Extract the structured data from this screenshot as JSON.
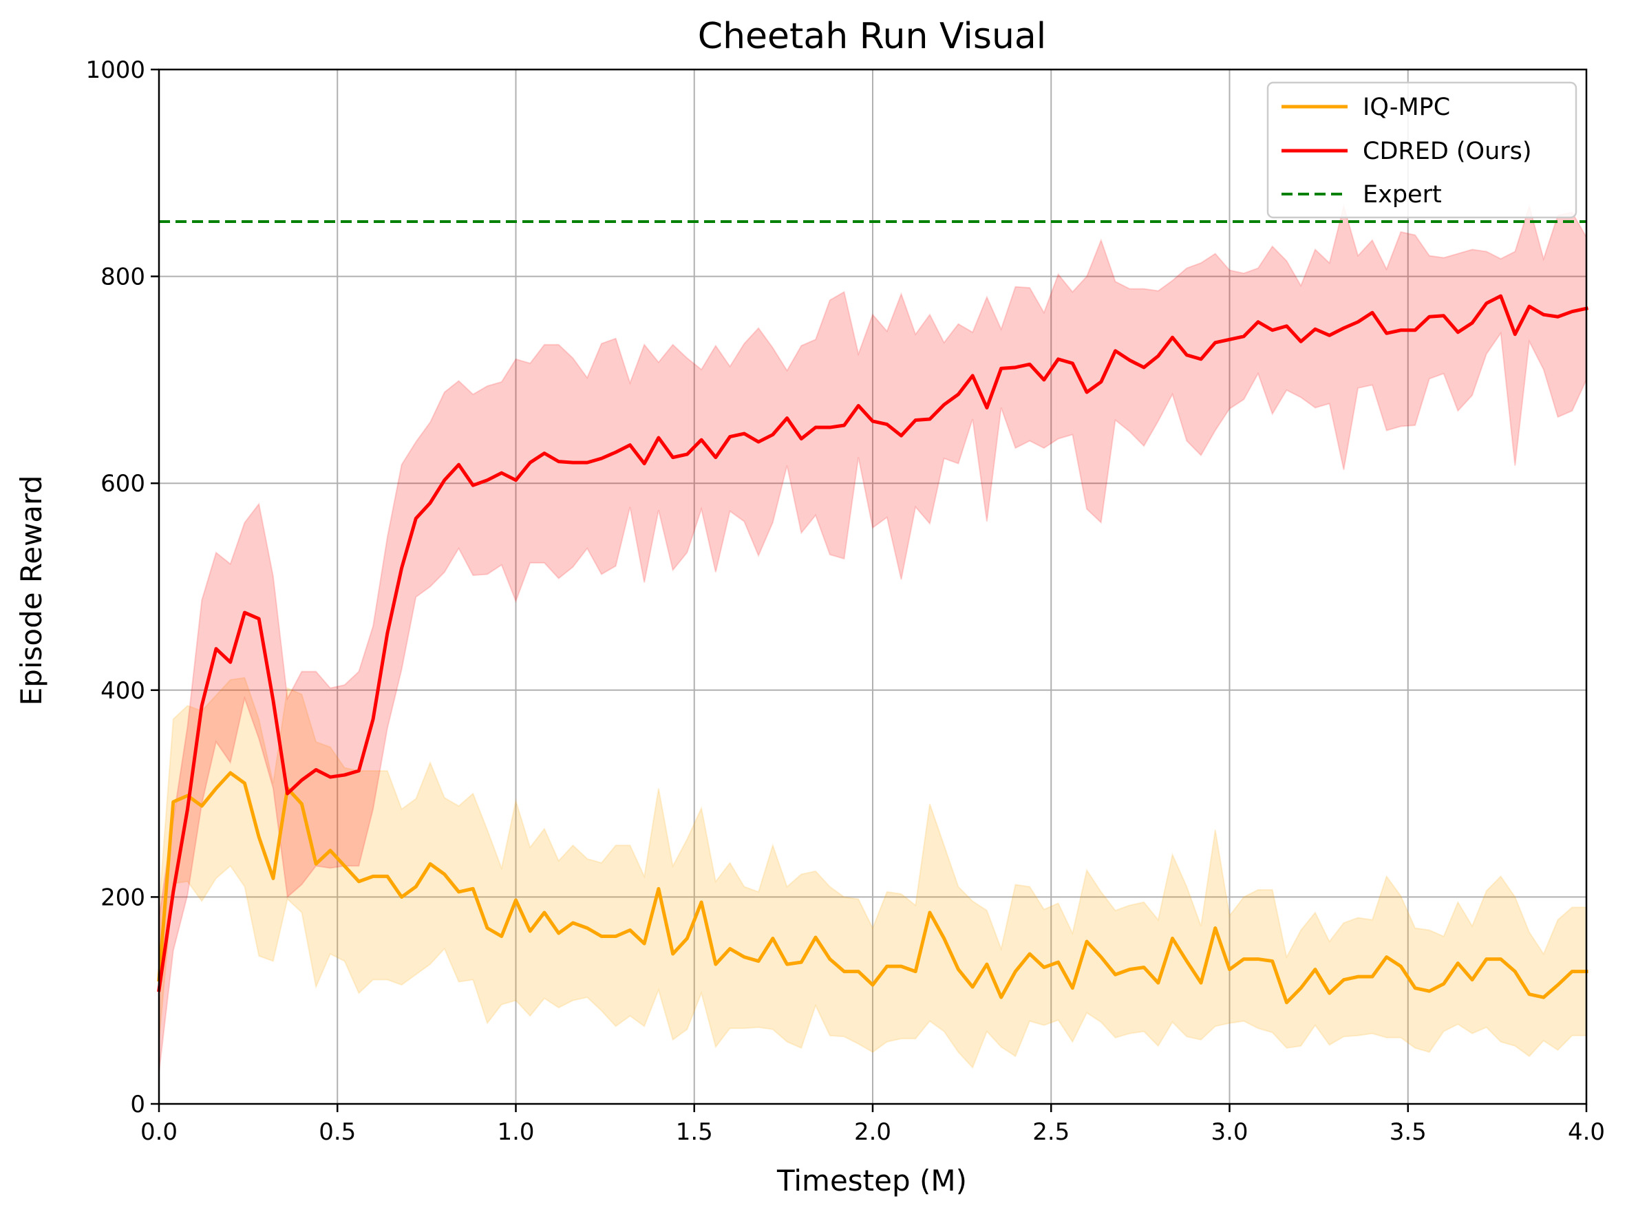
{
  "chart_data": {
    "type": "line",
    "title": "Cheetah Run Visual",
    "xlabel": "Timestep (M)",
    "ylabel": "Episode Reward",
    "xlim": [
      0,
      4.0
    ],
    "ylim": [
      0,
      1000
    ],
    "xticks": [
      0.0,
      0.5,
      1.0,
      1.5,
      2.0,
      2.5,
      3.0,
      3.5,
      4.0
    ],
    "xtick_labels": [
      "0.0",
      "0.5",
      "1.0",
      "1.5",
      "2.0",
      "2.5",
      "3.0",
      "3.5",
      "4.0"
    ],
    "yticks": [
      0,
      200,
      400,
      600,
      800,
      1000
    ],
    "ytick_labels": [
      "0",
      "200",
      "400",
      "600",
      "800",
      "1000"
    ],
    "grid": true,
    "legend_position": "top-right",
    "reference_line": {
      "name": "Expert",
      "value": 853,
      "color": "#008000",
      "style": "dashed"
    },
    "series": [
      {
        "name": "IQ-MPC",
        "color": "#FFA500",
        "x": [
          0.0,
          0.04,
          0.08,
          0.12,
          0.16,
          0.2,
          0.24,
          0.28,
          0.32,
          0.36,
          0.4,
          0.44,
          0.48,
          0.52,
          0.56,
          0.6,
          0.64,
          0.68,
          0.72,
          0.76,
          0.8,
          0.84,
          0.88,
          0.92,
          0.96,
          1.0,
          1.04,
          1.08,
          1.12,
          1.16,
          1.2,
          1.24,
          1.28,
          1.32,
          1.36,
          1.4,
          1.44,
          1.48,
          1.52,
          1.56,
          1.6,
          1.64,
          1.68,
          1.72,
          1.76,
          1.8,
          1.84,
          1.88,
          1.92,
          1.96,
          2.0,
          2.04,
          2.08,
          2.12,
          2.16,
          2.2,
          2.24,
          2.28,
          2.32,
          2.36,
          2.4,
          2.44,
          2.48,
          2.52,
          2.56,
          2.6,
          2.64,
          2.68,
          2.72,
          2.76,
          2.8,
          2.84,
          2.88,
          2.92,
          2.96,
          3.0,
          3.04,
          3.08,
          3.12,
          3.16,
          3.2,
          3.24,
          3.28,
          3.32,
          3.36,
          3.4,
          3.44,
          3.48,
          3.52,
          3.56,
          3.6,
          3.64,
          3.68,
          3.72,
          3.76,
          3.8,
          3.84,
          3.88,
          3.92,
          3.96,
          4.0
        ],
        "mean": [
          120,
          292,
          298,
          288,
          305,
          320,
          310,
          258,
          218,
          305,
          290,
          232,
          245,
          230,
          215,
          220,
          220,
          200,
          210,
          232,
          222,
          205,
          208,
          170,
          162,
          197,
          167,
          185,
          165,
          175,
          170,
          162,
          162,
          168,
          155,
          208,
          145,
          160,
          195,
          135,
          150,
          142,
          138,
          160,
          135,
          137,
          161,
          140,
          128,
          128,
          115,
          133,
          133,
          128,
          185,
          160,
          130,
          113,
          135,
          103,
          128,
          145,
          132,
          137,
          112,
          157,
          142,
          125,
          130,
          132,
          117,
          160,
          138,
          117,
          170,
          130,
          140,
          140,
          138,
          98,
          112,
          130,
          107,
          120,
          123,
          123,
          142,
          133,
          112,
          109,
          116,
          136,
          120,
          140,
          140,
          128,
          106,
          103,
          115,
          128,
          128
        ],
        "upper": [
          190,
          372,
          385,
          380,
          395,
          410,
          412,
          372,
          310,
          402,
          396,
          350,
          345,
          325,
          322,
          322,
          322,
          285,
          295,
          330,
          296,
          288,
          300,
          265,
          228,
          293,
          248,
          266,
          235,
          250,
          237,
          233,
          250,
          250,
          220,
          305,
          230,
          256,
          286,
          215,
          233,
          210,
          205,
          250,
          210,
          222,
          225,
          210,
          200,
          198,
          170,
          205,
          203,
          192,
          290,
          250,
          210,
          196,
          187,
          150,
          212,
          210,
          188,
          194,
          165,
          226,
          205,
          187,
          192,
          195,
          178,
          241,
          210,
          172,
          265,
          182,
          200,
          207,
          207,
          142,
          168,
          185,
          157,
          175,
          180,
          178,
          220,
          201,
          170,
          168,
          162,
          195,
          172,
          206,
          220,
          200,
          166,
          145,
          178,
          190,
          190
        ],
        "lower": [
          60,
          213,
          215,
          196,
          218,
          230,
          210,
          143,
          138,
          198,
          185,
          113,
          145,
          138,
          107,
          120,
          120,
          115,
          125,
          135,
          150,
          118,
          120,
          78,
          96,
          100,
          85,
          102,
          93,
          100,
          103,
          90,
          75,
          85,
          75,
          110,
          62,
          72,
          107,
          55,
          73,
          73,
          74,
          72,
          60,
          54,
          95,
          66,
          65,
          58,
          50,
          60,
          63,
          63,
          80,
          70,
          50,
          35,
          70,
          55,
          46,
          80,
          76,
          81,
          60,
          88,
          79,
          64,
          68,
          70,
          56,
          79,
          65,
          62,
          75,
          78,
          80,
          73,
          69,
          54,
          56,
          76,
          57,
          65,
          66,
          68,
          64,
          64,
          54,
          50,
          70,
          77,
          68,
          74,
          60,
          56,
          46,
          61,
          52,
          66,
          66
        ]
      },
      {
        "name": "CDRED (Ours)",
        "color": "#FF0000",
        "x": [
          0.0,
          0.04,
          0.08,
          0.12,
          0.16,
          0.2,
          0.24,
          0.28,
          0.32,
          0.36,
          0.4,
          0.44,
          0.48,
          0.52,
          0.56,
          0.6,
          0.64,
          0.68,
          0.72,
          0.76,
          0.8,
          0.84,
          0.88,
          0.92,
          0.96,
          1.0,
          1.04,
          1.08,
          1.12,
          1.16,
          1.2,
          1.24,
          1.28,
          1.32,
          1.36,
          1.4,
          1.44,
          1.48,
          1.52,
          1.56,
          1.6,
          1.64,
          1.68,
          1.72,
          1.76,
          1.8,
          1.84,
          1.88,
          1.92,
          1.96,
          2.0,
          2.04,
          2.08,
          2.12,
          2.16,
          2.2,
          2.24,
          2.28,
          2.32,
          2.36,
          2.4,
          2.44,
          2.48,
          2.52,
          2.56,
          2.6,
          2.64,
          2.68,
          2.72,
          2.76,
          2.8,
          2.84,
          2.88,
          2.92,
          2.96,
          3.0,
          3.04,
          3.08,
          3.12,
          3.16,
          3.2,
          3.24,
          3.28,
          3.32,
          3.36,
          3.4,
          3.44,
          3.48,
          3.52,
          3.56,
          3.6,
          3.64,
          3.68,
          3.72,
          3.76,
          3.8,
          3.84,
          3.88,
          3.92,
          3.96,
          4.0
        ],
        "mean": [
          110,
          205,
          285,
          385,
          440,
          427,
          475,
          469,
          390,
          300,
          313,
          323,
          316,
          318,
          322,
          372,
          455,
          518,
          566,
          581,
          603,
          618,
          598,
          603,
          610,
          603,
          620,
          629,
          621,
          620,
          620,
          624,
          630,
          637,
          619,
          644,
          625,
          628,
          642,
          625,
          645,
          648,
          640,
          647,
          663,
          643,
          654,
          654,
          656,
          675,
          660,
          657,
          646,
          661,
          662,
          676,
          686,
          704,
          673,
          711,
          712,
          715,
          700,
          720,
          716,
          688,
          698,
          728,
          719,
          712,
          723,
          741,
          724,
          720,
          736,
          739,
          742,
          756,
          748,
          752,
          737,
          749,
          743,
          750,
          756,
          765,
          745,
          748,
          748,
          761,
          762,
          746,
          755,
          774,
          781,
          744,
          771,
          763,
          761,
          766,
          769
        ],
        "upper": [
          180,
          275,
          365,
          487,
          533,
          522,
          562,
          580,
          510,
          392,
          418,
          418,
          402,
          405,
          418,
          462,
          548,
          618,
          640,
          659,
          688,
          699,
          686,
          694,
          698,
          720,
          716,
          734,
          734,
          721,
          702,
          735,
          740,
          697,
          734,
          717,
          734,
          721,
          710,
          733,
          713,
          735,
          750,
          731,
          709,
          733,
          739,
          777,
          785,
          725,
          763,
          747,
          783,
          744,
          763,
          736,
          754,
          746,
          780,
          749,
          790,
          789,
          765,
          802,
          785,
          800,
          835,
          795,
          788,
          788,
          786,
          796,
          808,
          813,
          822,
          806,
          803,
          808,
          829,
          815,
          791,
          826,
          813,
          868,
          820,
          835,
          807,
          843,
          840,
          820,
          818,
          822,
          826,
          824,
          817,
          824,
          868,
          817,
          859,
          862,
          838
        ],
        "lower": [
          30,
          148,
          202,
          290,
          350,
          330,
          392,
          353,
          305,
          200,
          212,
          230,
          228,
          230,
          230,
          285,
          363,
          420,
          490,
          500,
          514,
          537,
          511,
          512,
          521,
          486,
          523,
          523,
          508,
          519,
          537,
          512,
          520,
          577,
          504,
          574,
          516,
          533,
          575,
          514,
          573,
          563,
          530,
          562,
          617,
          552,
          569,
          531,
          527,
          625,
          557,
          567,
          507,
          577,
          561,
          624,
          619,
          662,
          563,
          673,
          634,
          641,
          634,
          643,
          647,
          575,
          562,
          661,
          650,
          636,
          660,
          686,
          641,
          627,
          651,
          672,
          681,
          706,
          667,
          690,
          683,
          673,
          677,
          613,
          692,
          695,
          651,
          655,
          656,
          701,
          706,
          670,
          685,
          725,
          745,
          617,
          737,
          710,
          664,
          670,
          700
        ]
      }
    ]
  }
}
